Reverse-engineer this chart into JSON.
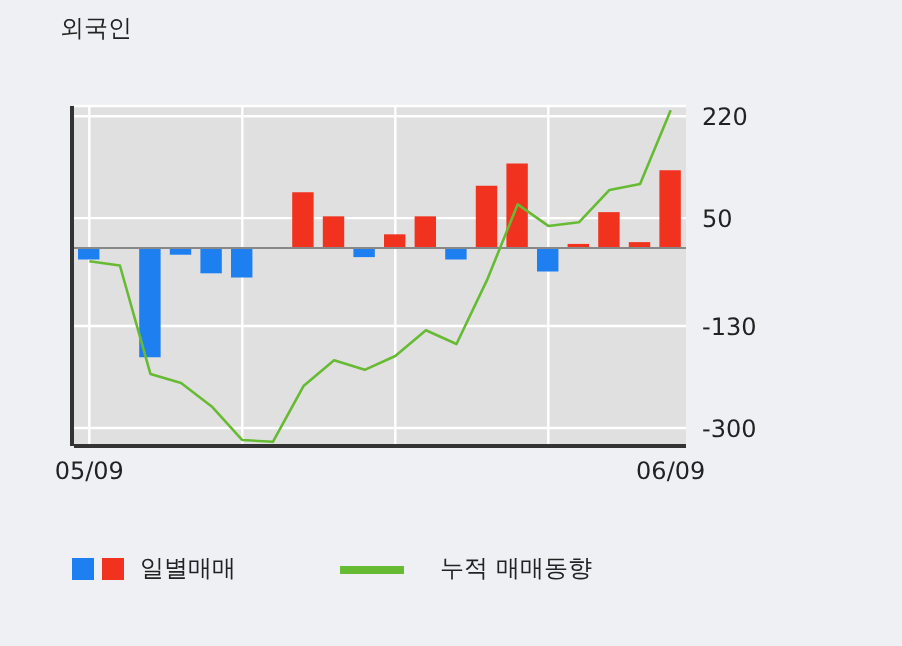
{
  "chart_data": {
    "type": "bar",
    "title": "외국인",
    "categories": [
      "05/09",
      null,
      null,
      null,
      null,
      null,
      null,
      null,
      null,
      null,
      null,
      null,
      null,
      null,
      null,
      null,
      null,
      null,
      null,
      "06/09"
    ],
    "series": [
      {
        "name": "일별매매",
        "colors": [
          "#1e7ff0",
          "#1e7ff0",
          "#1e7ff0",
          "#1e7ff0",
          "#1e7ff0",
          "#1e7ff0",
          "#1e7ff0",
          "#f0321e",
          "#f0321e",
          "#1e7ff0",
          "#f0321e",
          "#f0321e",
          "#1e7ff0",
          "#f0321e",
          "#f0321e",
          "#1e7ff0",
          "#f0321e",
          "#f0321e",
          "#f0321e",
          "#f0321e"
        ],
        "values": [
          -19,
          0,
          -182,
          -11,
          -42,
          -49,
          0,
          93,
          53,
          -15,
          23,
          53,
          -19,
          104,
          141,
          -39,
          7,
          60,
          10,
          130
        ]
      },
      {
        "name": "누적 매매동향",
        "type": "line",
        "color": "#66bb33",
        "values": [
          -22,
          -29,
          -210,
          -225,
          -264,
          -320,
          -323,
          -230,
          -187,
          -203,
          -180,
          -137,
          -160,
          -53,
          73,
          37,
          43,
          97,
          107,
          230
        ]
      }
    ],
    "ylim": [
      -330,
      237
    ],
    "yticks": [
      220,
      50,
      -130,
      -300
    ],
    "ref_lines": [
      {
        "axis": "y",
        "value": 0,
        "color": "#888888"
      }
    ],
    "grid": true,
    "legend": "bottom"
  }
}
